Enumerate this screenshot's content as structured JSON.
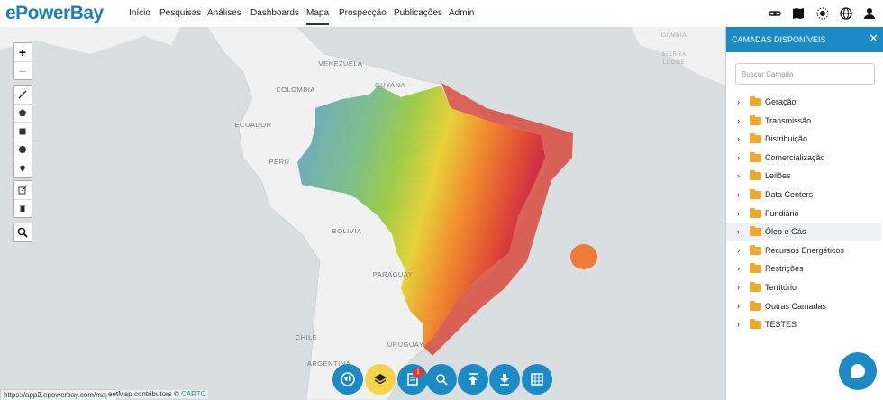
{
  "header": {
    "logo": "ePowerBay",
    "nav": [
      "Início",
      "Pesquisas",
      "Análises",
      "Dashboards",
      "Mapa",
      "Prospecção",
      "Publicações",
      "Admin"
    ]
  },
  "map_labels": [
    "VENEZUELA",
    "COLOMBIA",
    "GUYANA",
    "ECUADOR",
    "PERU",
    "BOLIVIA",
    "PARAGUAY",
    "CHILE",
    "URUGUAY",
    "ARGENTINA",
    "SIERRA",
    "LEONE",
    "GAMBIA"
  ],
  "panel": {
    "title": "CAMADAS DISPONÍVEIS",
    "search_placeholder": "Buscar Camada",
    "items": [
      "Geração",
      "Transmissão",
      "Distribuição",
      "Comercialização",
      "Leilões",
      "Data Centers",
      "Fundiário",
      "Óleo e Gás",
      "Recursos Energéticos",
      "Restrições",
      "Território",
      "Outras Camadas",
      "TESTES"
    ]
  },
  "toolbar": {
    "badge": "1"
  },
  "attribution": {
    "text": "eetMap contributors ©",
    "link": "CARTO"
  },
  "status_url": "https://app2.epowerbay.com/mapa"
}
